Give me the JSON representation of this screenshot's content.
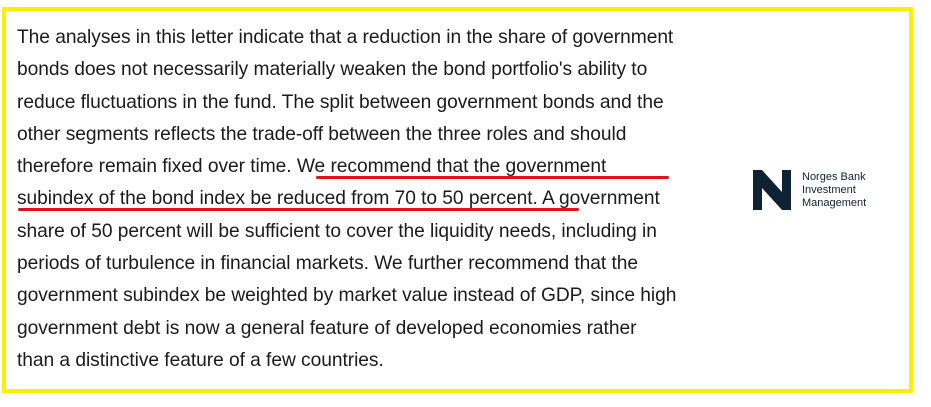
{
  "document": {
    "lines": [
      "The analyses in this letter indicate that a reduction in the share of government",
      "bonds does not necessarily materially weaken the bond portfolio's ability to",
      "reduce fluctuations in the fund. The split between government bonds and the",
      "other segments reflects the trade-off between the three roles and should",
      "therefore remain fixed over time. ",
      "We recommend that the government",
      "subindex of the bond index be reduced from 70 to 50 percent.",
      " A government",
      "share of 50 percent will be sufficient to cover the liquidity needs, including in",
      "periods of turbulence in financial markets. We further recommend that the",
      "government subindex be weighted by market value instead of GDP, since high",
      "government debt is now a general feature of developed economies rather",
      "than a distinctive feature of a few countries."
    ]
  },
  "logo": {
    "line1": "Norges Bank",
    "line2": "Investment",
    "line3": "Management",
    "color": "#0f2233"
  },
  "colors": {
    "frame": "#ffee00",
    "underline": "#e0111b",
    "text": "#1b1b1b"
  }
}
